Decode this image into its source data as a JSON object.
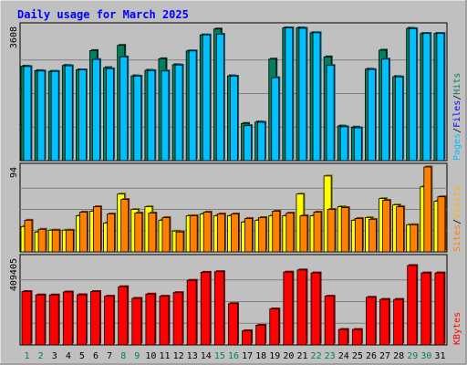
{
  "chart_data": {
    "type": "bar",
    "title": "Daily usage for March 2025",
    "categories": [
      "1",
      "2",
      "3",
      "4",
      "5",
      "6",
      "7",
      "8",
      "9",
      "10",
      "11",
      "12",
      "13",
      "14",
      "15",
      "16",
      "17",
      "18",
      "19",
      "20",
      "21",
      "22",
      "23",
      "24",
      "25",
      "26",
      "27",
      "28",
      "29",
      "30",
      "31"
    ],
    "weekend_days": [
      "1",
      "2",
      "8",
      "9",
      "15",
      "16",
      "22",
      "23",
      "29",
      "30"
    ],
    "panels": [
      {
        "name": "hits-files-pages",
        "ymax_label": "3608",
        "ymax": 3608,
        "legend": [
          "Pages",
          "/",
          "Files",
          "/",
          "Hits"
        ],
        "series": [
          {
            "name": "Hits",
            "color": "#00805c",
            "values": [
              2540,
              2420,
              2400,
              2560,
              2440,
              2960,
              2500,
              3100,
              2280,
              2430,
              2740,
              2580,
              2950,
              3380,
              3540,
              2280,
              1000,
              1040,
              2730,
              3570,
              3570,
              3440,
              2790,
              930,
              900,
              2460,
              2970,
              2260,
              3560,
              3420,
              3420
            ]
          },
          {
            "name": "Files",
            "color": "#00c0ff",
            "values": [
              2530,
              2410,
              2400,
              2550,
              2440,
              2720,
              2470,
              2790,
              2270,
              2420,
              2410,
              2570,
              2950,
              3380,
              3400,
              2270,
              940,
              1030,
              2230,
              3570,
              3560,
              3440,
              2560,
              910,
              880,
              2450,
              2730,
              2250,
              3550,
              3420,
              3420
            ]
          },
          {
            "name": "Pages",
            "color": "#00e0ff",
            "values": [
              0,
              0,
              0,
              0,
              0,
              0,
              0,
              0,
              0,
              0,
              0,
              0,
              0,
              0,
              0,
              0,
              0,
              0,
              0,
              0,
              0,
              0,
              0,
              0,
              0,
              0,
              0,
              0,
              0,
              0,
              0
            ]
          }
        ]
      },
      {
        "name": "visits-sites",
        "ymax_label": "94",
        "ymax": 94,
        "legend": [
          "Sites",
          "/",
          "Visits"
        ],
        "series": [
          {
            "name": "Visits",
            "color": "#ffff00",
            "values": [
              28,
              22,
              24,
              24,
              40,
              45,
              32,
              64,
              47,
              50,
              35,
              23,
              40,
              42,
              40,
              40,
              33,
              35,
              40,
              40,
              64,
              40,
              84,
              50,
              35,
              38,
              59,
              52,
              30,
              72,
              56
            ]
          },
          {
            "name": "Sites",
            "color": "#ff8000",
            "values": [
              35,
              25,
              24,
              24,
              44,
              50,
              42,
              58,
              43,
              43,
              38,
              22,
              40,
              44,
              42,
              42,
              37,
              38,
              45,
              43,
              40,
              44,
              47,
              49,
              37,
              36,
              57,
              50,
              30,
              94,
              61
            ]
          }
        ]
      },
      {
        "name": "kbytes",
        "ymax_label": "409405",
        "ymax": 409405,
        "legend": [
          "KBytes"
        ],
        "series": [
          {
            "name": "KBytes",
            "color": "#ff0000",
            "values": [
              252000,
              236000,
              236000,
              250000,
              237000,
              252000,
              230000,
              275000,
              220000,
              240000,
              230000,
              247000,
              305000,
              343000,
              346000,
              195000,
              67000,
              93000,
              170000,
              344000,
              354000,
              340000,
              230000,
              73000,
              73000,
              225000,
              215000,
              215000,
              375000,
              340000,
              340000
            ]
          }
        ]
      }
    ]
  },
  "style": {
    "background": "#c0c0c0",
    "plot_background": "#c0c0c0",
    "title_color": "#0000ff",
    "weekday_label_color": "#000000",
    "weekend_label_color": "#00805c",
    "gridline_color": "#808080",
    "legend_colors": {
      "Pages": "#00c0ff",
      "Files": "#0000ff",
      "Hits": "#00805c",
      "Sites": "#ff8000",
      "Visits": "#ffb000",
      "KBytes": "#ff0000",
      "/": "#000000"
    }
  }
}
